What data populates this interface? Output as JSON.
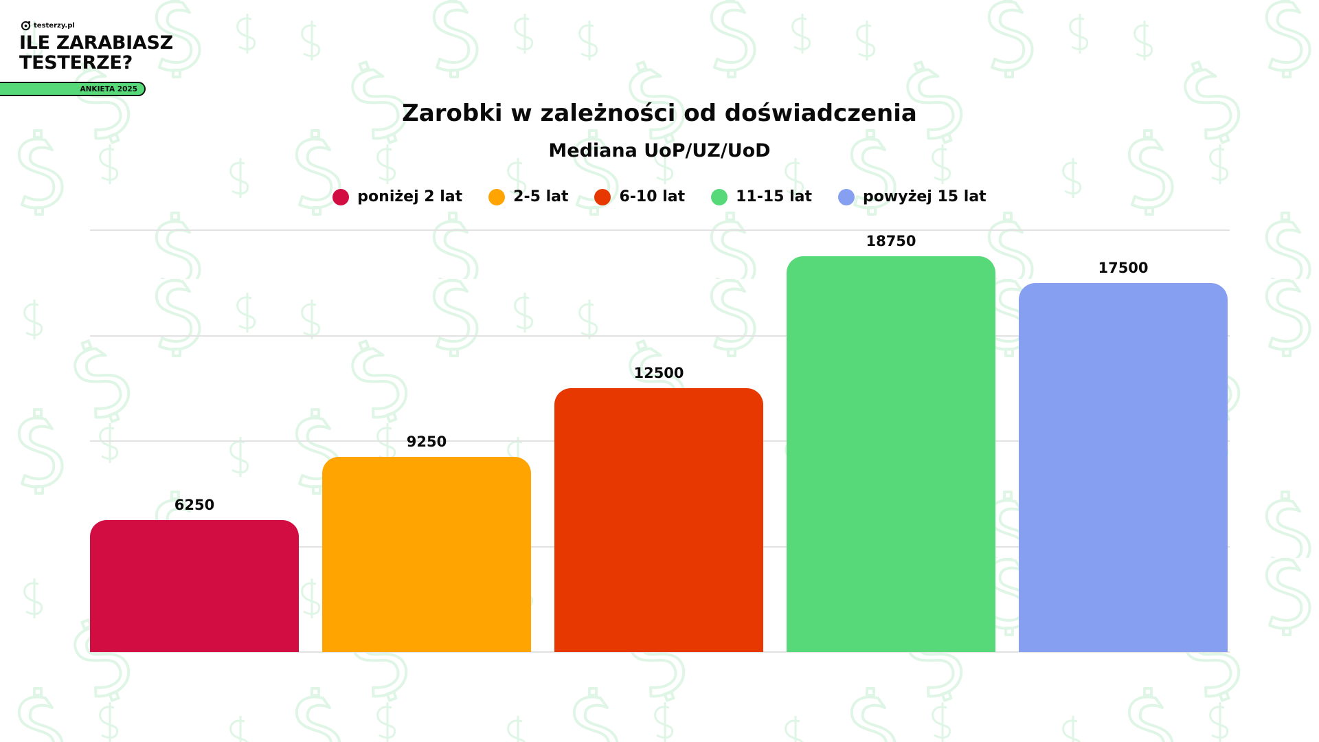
{
  "branding": {
    "logo_text": "testerzy.pl",
    "headline_line1": "ILE ZARABIASZ",
    "headline_line2": "TESTERZE?",
    "badge": "ANKIETA 2025",
    "badge_color": "#57d979"
  },
  "colors": {
    "background": "#ffffff",
    "pattern": "#dff5e5",
    "gridline": "#e2e2e2"
  },
  "chart_data": {
    "type": "bar",
    "title": "Zarobki w zależności od doświadczenia",
    "subtitle": "Mediana UoP/UZ/UoD",
    "xlabel": "",
    "ylabel": "",
    "categories": [
      "poniżej 2 lat",
      "2-5 lat",
      "6-10 lat",
      "11-15 lat",
      "powyżej 15 lat"
    ],
    "values": [
      6250,
      9250,
      12500,
      18750,
      17500
    ],
    "colors": [
      "#d10d42",
      "#ffa400",
      "#e63800",
      "#57d979",
      "#879ff0"
    ],
    "ylim": [
      0,
      20000
    ],
    "gridlines": [
      0,
      5000,
      10000,
      15000,
      20000
    ],
    "grid": true,
    "axis_tick_labels_shown": false,
    "data_labels": true,
    "legend_position": "top"
  },
  "legend": [
    {
      "label": "poniżej 2 lat",
      "color": "#d10d42"
    },
    {
      "label": "2-5 lat",
      "color": "#ffa400"
    },
    {
      "label": "6-10 lat",
      "color": "#e63800"
    },
    {
      "label": "11-15 lat",
      "color": "#57d979"
    },
    {
      "label": "powyżej 15 lat",
      "color": "#879ff0"
    }
  ],
  "bars": [
    {
      "label": "6250"
    },
    {
      "label": "9250"
    },
    {
      "label": "12500"
    },
    {
      "label": "18750"
    },
    {
      "label": "17500"
    }
  ]
}
